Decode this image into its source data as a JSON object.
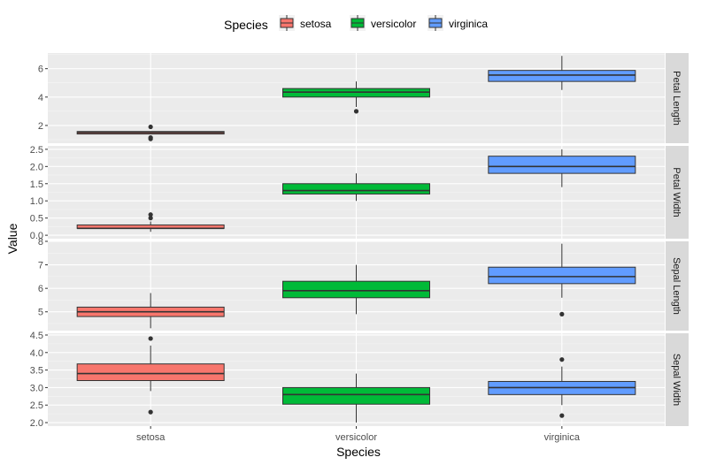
{
  "chart_data": {
    "type": "boxplot",
    "xlabel": "Species",
    "ylabel": "Value",
    "categories": [
      "setosa",
      "versicolor",
      "virginica"
    ],
    "legend": {
      "title": "Species",
      "placement": "top",
      "entries": [
        {
          "name": "setosa",
          "color": "#F8766D"
        },
        {
          "name": "versicolor",
          "color": "#00BA38"
        },
        {
          "name": "virginica",
          "color": "#619CFF"
        }
      ]
    },
    "facets": [
      {
        "label": "Petal Length",
        "ylim": [
          0.75,
          7.1
        ],
        "yticks": [
          2,
          4,
          6
        ],
        "tick_labels": [
          "2",
          "4",
          "6"
        ],
        "boxes": [
          {
            "category": "setosa",
            "min": 1.4,
            "q1": 1.4,
            "median": 1.5,
            "q3": 1.575,
            "max": 1.575,
            "outliers": [
              1.05,
              1.15,
              1.9
            ]
          },
          {
            "category": "versicolor",
            "min": 3.3,
            "q1": 4.0,
            "median": 4.35,
            "q3": 4.6,
            "max": 5.1,
            "outliers": [
              3.0
            ]
          },
          {
            "category": "virginica",
            "min": 4.5,
            "q1": 5.1,
            "median": 5.55,
            "q3": 5.875,
            "max": 6.9,
            "outliers": []
          }
        ]
      },
      {
        "label": "Petal Width",
        "ylim": [
          -0.1,
          2.6
        ],
        "yticks": [
          0.0,
          0.5,
          1.0,
          1.5,
          2.0,
          2.5
        ],
        "tick_labels": [
          "0.0",
          "0.5",
          "1.0",
          "1.5",
          "2.0",
          "2.5"
        ],
        "boxes": [
          {
            "category": "setosa",
            "min": 0.1,
            "q1": 0.2,
            "median": 0.2,
            "q3": 0.3,
            "max": 0.4,
            "outliers": [
              0.5,
              0.6
            ]
          },
          {
            "category": "versicolor",
            "min": 1.0,
            "q1": 1.2,
            "median": 1.3,
            "q3": 1.5,
            "max": 1.8,
            "outliers": []
          },
          {
            "category": "virginica",
            "min": 1.4,
            "q1": 1.8,
            "median": 2.0,
            "q3": 2.3,
            "max": 2.5,
            "outliers": []
          }
        ]
      },
      {
        "label": "Sepal Length",
        "ylim": [
          4.2,
          8.0
        ],
        "yticks": [
          5,
          6,
          7,
          8
        ],
        "tick_labels": [
          "5",
          "6",
          "7",
          "8"
        ],
        "boxes": [
          {
            "category": "setosa",
            "min": 4.3,
            "q1": 4.8,
            "median": 5.0,
            "q3": 5.2,
            "max": 5.8,
            "outliers": []
          },
          {
            "category": "versicolor",
            "min": 4.9,
            "q1": 5.6,
            "median": 5.9,
            "q3": 6.3,
            "max": 7.0,
            "outliers": []
          },
          {
            "category": "virginica",
            "min": 5.6,
            "q1": 6.2,
            "median": 6.5,
            "q3": 6.9,
            "max": 7.9,
            "outliers": [
              4.9
            ]
          }
        ]
      },
      {
        "label": "Sepal Width",
        "ylim": [
          1.9,
          4.55
        ],
        "yticks": [
          2.0,
          2.5,
          3.0,
          3.5,
          4.0,
          4.5
        ],
        "tick_labels": [
          "2.0",
          "2.5",
          "3.0",
          "3.5",
          "4.0",
          "4.5"
        ],
        "boxes": [
          {
            "category": "setosa",
            "min": 2.9,
            "q1": 3.2,
            "median": 3.4,
            "q3": 3.675,
            "max": 4.2,
            "outliers": [
              4.4,
              2.3
            ]
          },
          {
            "category": "versicolor",
            "min": 2.0,
            "q1": 2.525,
            "median": 2.8,
            "q3": 3.0,
            "max": 3.4,
            "outliers": []
          },
          {
            "category": "virginica",
            "min": 2.5,
            "q1": 2.8,
            "median": 3.0,
            "q3": 3.175,
            "max": 3.6,
            "outliers": [
              3.8,
              2.2
            ]
          }
        ]
      }
    ]
  }
}
